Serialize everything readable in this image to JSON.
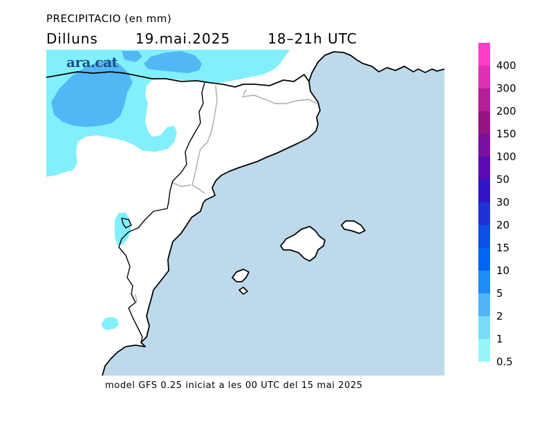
{
  "header": {
    "title": "PRECIPITACIO (en mm)",
    "day": "Dilluns",
    "date": "19.mai.2025",
    "time_range": "18–21h UTC"
  },
  "logo": {
    "text": "ara.cat"
  },
  "footer": {
    "text": "model GFS 0.25 iniciat a les 00 UTC del 15 mai 2025"
  },
  "colors": {
    "sea": "#bed9ea",
    "land": "#ffffff",
    "precip_light": "#82f0fc",
    "precip_medium": "#52b7f5",
    "coast": "#000000",
    "borders": "#a8a8a8"
  },
  "legend": {
    "labels": [
      "400",
      "300",
      "200",
      "150",
      "100",
      "50",
      "30",
      "20",
      "15",
      "10",
      "5",
      "2",
      "1",
      "0.5"
    ],
    "colors": [
      "#ff3cc8",
      "#e030b4",
      "#b41e9b",
      "#961482",
      "#78119f",
      "#5a0ab4",
      "#3214c8",
      "#1e32d8",
      "#0a50e6",
      "#0064f5",
      "#1e8cf5",
      "#50b4f5",
      "#78dcf8",
      "#96f5fa"
    ]
  }
}
